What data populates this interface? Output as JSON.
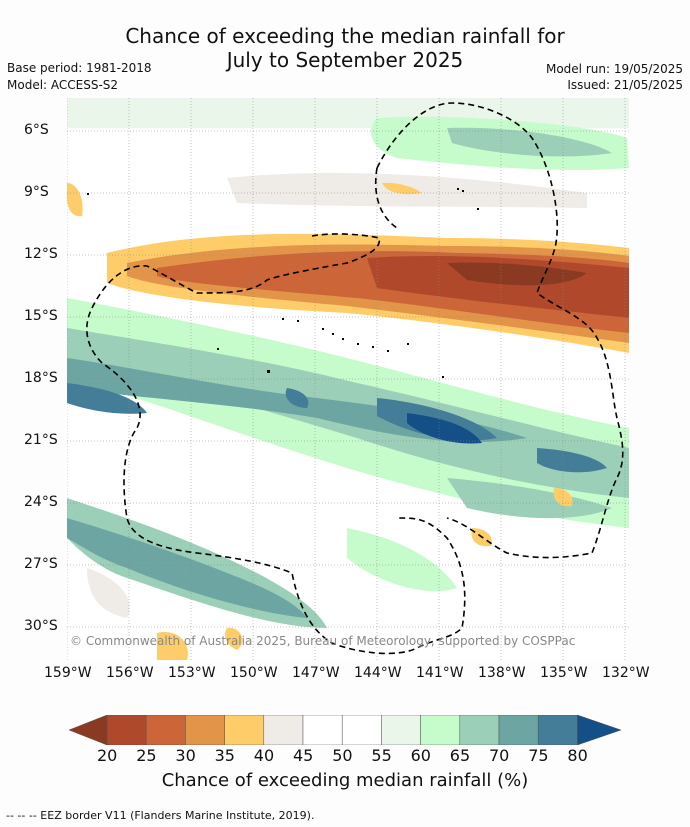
{
  "header": {
    "title_line1": "Chance of exceeding the median rainfall for",
    "title_line2": "July to September 2025",
    "base_period": "Base period: 1981-2018",
    "model": "Model: ACCESS-S2",
    "model_run": "Model run: 19/05/2025",
    "issued": "Issued: 21/05/2025"
  },
  "map": {
    "lat_ticks": [
      "6°S",
      "9°S",
      "12°S",
      "15°S",
      "18°S",
      "21°S",
      "24°S",
      "27°S",
      "30°S"
    ],
    "lon_ticks": [
      "159°W",
      "156°W",
      "153°W",
      "150°W",
      "147°W",
      "144°W",
      "141°W",
      "138°W",
      "135°W",
      "132°W"
    ],
    "copyright": "© Commonwealth of Australia 2025, Bureau of Meteorology, supported by COSPPac"
  },
  "colorbar": {
    "labels": [
      "20",
      "25",
      "30",
      "35",
      "40",
      "45",
      "50",
      "55",
      "60",
      "65",
      "70",
      "75",
      "80"
    ],
    "colors": [
      "#8b3a22",
      "#b0492b",
      "#cc6537",
      "#e29449",
      "#fecd6a",
      "#efebe7",
      "#ffffff",
      "#ffffff",
      "#e9f6e9",
      "#c6fbcc",
      "#9bcfb7",
      "#6da5a3",
      "#447d98",
      "#154f87"
    ],
    "title": "Chance of exceeding median rainfall (%)"
  },
  "footnote": "--  --  -- EEZ border V11 (Flanders Marine Institute, 2019)."
}
